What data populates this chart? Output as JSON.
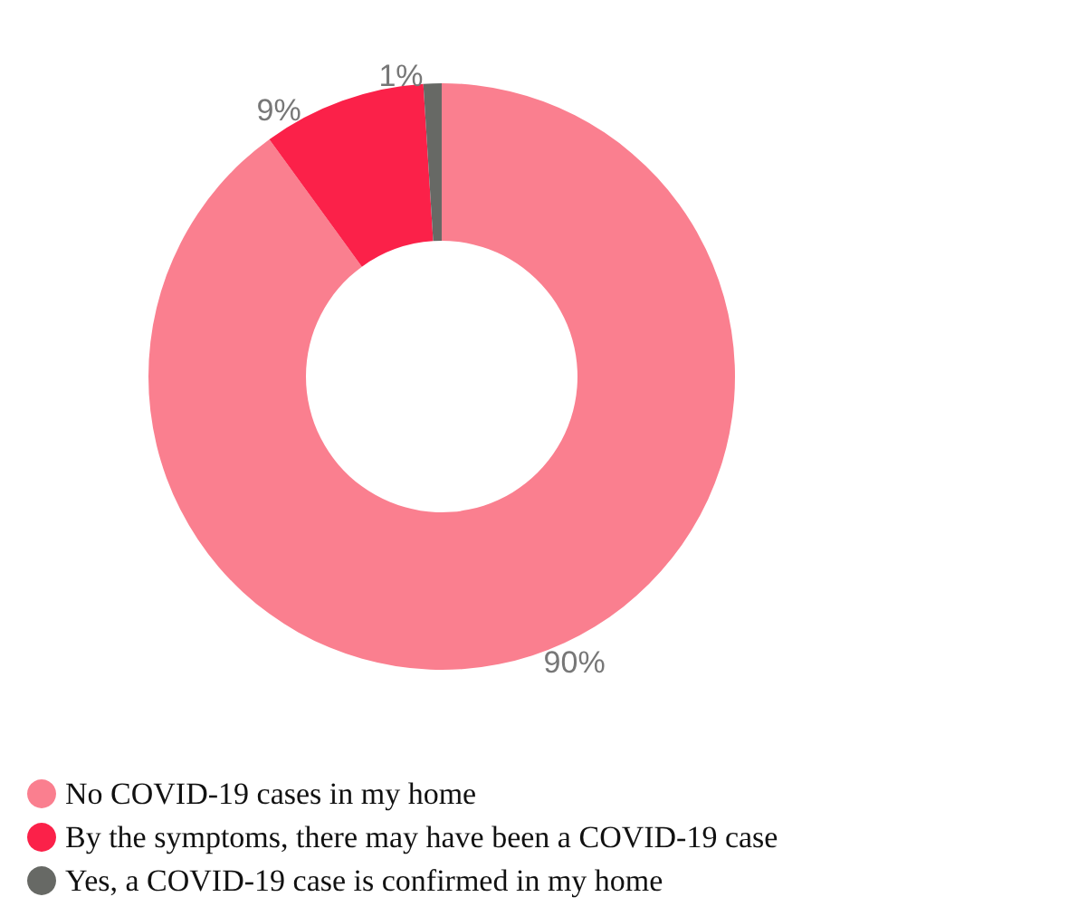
{
  "chart_data": {
    "type": "donut",
    "categories": [
      "No COVID-19 cases in my home",
      "By the symptoms, there may have been a COVID-19 case",
      "Yes, a COVID-19 case is confirmed in my home"
    ],
    "values": [
      90,
      9,
      1
    ],
    "value_labels": [
      "90%",
      "9%",
      "1%"
    ],
    "colors": [
      "#fa7f8f",
      "#fb2149",
      "#676965"
    ],
    "legend": "bottom left"
  }
}
